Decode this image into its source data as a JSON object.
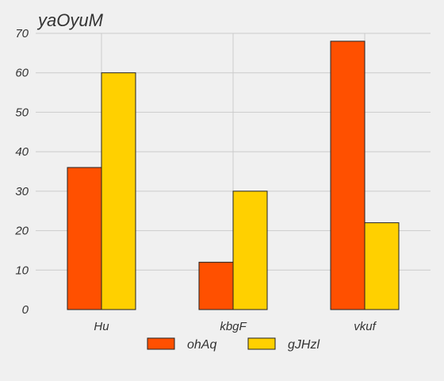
{
  "chart_data": {
    "type": "bar",
    "title": "yaOyuM",
    "xlabel": "",
    "ylabel": "",
    "categories": [
      "Hu",
      "kbgF",
      "vkuf"
    ],
    "series": [
      {
        "name": "ohAq",
        "values": [
          36,
          12,
          68
        ],
        "color": "#ff5000"
      },
      {
        "name": "gJHzl",
        "values": [
          60,
          30,
          22
        ],
        "color": "#ffd000"
      }
    ],
    "ylim": [
      0,
      70
    ],
    "yticks": [
      0,
      10,
      20,
      30,
      40,
      50,
      60,
      70
    ],
    "grid": true,
    "legend": "bottom-center"
  },
  "colors": {
    "background": "#f0f0f0",
    "grid": "#cbcbcb",
    "bar_edge": "#222222",
    "text": "#333333"
  }
}
